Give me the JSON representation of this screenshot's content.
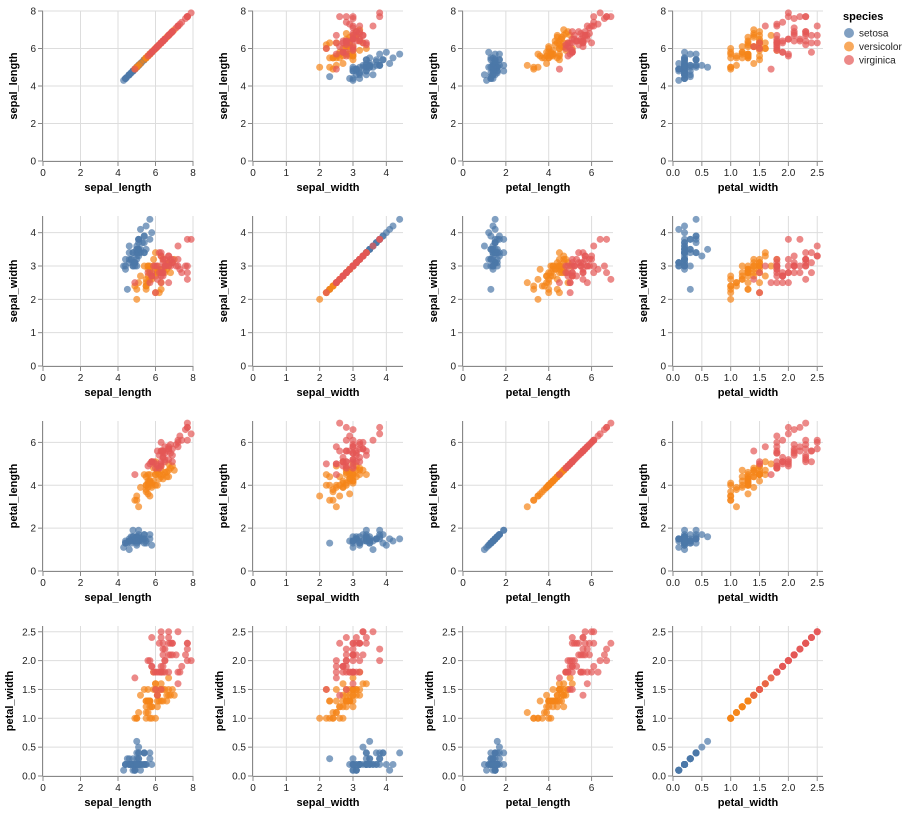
{
  "chart_data": {
    "type": "scatter",
    "layout": "scatter-matrix",
    "fields": [
      "sepal_length",
      "sepal_width",
      "petal_length",
      "petal_width"
    ],
    "axes": {
      "sepal_length": {
        "title": "sepal_length",
        "domain": [
          0,
          8
        ],
        "ticks": [
          "0",
          "2",
          "4",
          "6",
          "8"
        ]
      },
      "sepal_width": {
        "title": "sepal_width",
        "domain": [
          0,
          4.5
        ],
        "ticks": [
          "0",
          "1",
          "2",
          "3",
          "4"
        ]
      },
      "petal_length": {
        "title": "petal_length",
        "domain": [
          0,
          7
        ],
        "ticks": [
          "0",
          "2",
          "4",
          "6"
        ]
      },
      "petal_width": {
        "title": "petal_width",
        "domain": [
          0,
          2.6
        ],
        "ticks": [
          "0.0",
          "0.5",
          "1.0",
          "1.5",
          "2.0",
          "2.5"
        ]
      }
    },
    "grid": true,
    "legend": {
      "title": "species",
      "placement": "top-right"
    },
    "series": [
      {
        "name": "setosa",
        "color": "#4c78a8",
        "values": [
          [
            5.1,
            3.5,
            1.4,
            0.2
          ],
          [
            4.9,
            3.0,
            1.4,
            0.2
          ],
          [
            4.7,
            3.2,
            1.3,
            0.2
          ],
          [
            4.6,
            3.1,
            1.5,
            0.2
          ],
          [
            5.0,
            3.6,
            1.4,
            0.2
          ],
          [
            5.4,
            3.9,
            1.7,
            0.4
          ],
          [
            4.6,
            3.4,
            1.4,
            0.3
          ],
          [
            5.0,
            3.4,
            1.5,
            0.2
          ],
          [
            4.4,
            2.9,
            1.4,
            0.2
          ],
          [
            4.9,
            3.1,
            1.5,
            0.1
          ],
          [
            5.4,
            3.7,
            1.5,
            0.2
          ],
          [
            4.8,
            3.4,
            1.6,
            0.2
          ],
          [
            4.8,
            3.0,
            1.4,
            0.1
          ],
          [
            4.3,
            3.0,
            1.1,
            0.1
          ],
          [
            5.8,
            4.0,
            1.2,
            0.2
          ],
          [
            5.7,
            4.4,
            1.5,
            0.4
          ],
          [
            5.4,
            3.9,
            1.3,
            0.4
          ],
          [
            5.1,
            3.5,
            1.4,
            0.3
          ],
          [
            5.7,
            3.8,
            1.7,
            0.3
          ],
          [
            5.1,
            3.8,
            1.5,
            0.3
          ],
          [
            5.4,
            3.4,
            1.7,
            0.2
          ],
          [
            5.1,
            3.7,
            1.5,
            0.4
          ],
          [
            4.6,
            3.6,
            1.0,
            0.2
          ],
          [
            5.1,
            3.3,
            1.7,
            0.5
          ],
          [
            4.8,
            3.4,
            1.9,
            0.2
          ],
          [
            5.0,
            3.0,
            1.6,
            0.2
          ],
          [
            5.0,
            3.4,
            1.6,
            0.4
          ],
          [
            5.2,
            3.5,
            1.5,
            0.2
          ],
          [
            5.2,
            3.4,
            1.4,
            0.2
          ],
          [
            4.7,
            3.2,
            1.6,
            0.2
          ],
          [
            4.8,
            3.1,
            1.6,
            0.2
          ],
          [
            5.4,
            3.4,
            1.5,
            0.4
          ],
          [
            5.2,
            4.1,
            1.5,
            0.1
          ],
          [
            5.5,
            4.2,
            1.4,
            0.2
          ],
          [
            4.9,
            3.1,
            1.5,
            0.1
          ],
          [
            5.0,
            3.2,
            1.2,
            0.2
          ],
          [
            5.5,
            3.5,
            1.3,
            0.2
          ],
          [
            4.9,
            3.1,
            1.5,
            0.1
          ],
          [
            4.4,
            3.0,
            1.3,
            0.2
          ],
          [
            5.1,
            3.4,
            1.5,
            0.2
          ],
          [
            5.0,
            3.5,
            1.3,
            0.3
          ],
          [
            4.5,
            2.3,
            1.3,
            0.3
          ],
          [
            4.4,
            3.2,
            1.3,
            0.2
          ],
          [
            5.0,
            3.5,
            1.6,
            0.6
          ],
          [
            5.1,
            3.8,
            1.9,
            0.4
          ],
          [
            4.8,
            3.0,
            1.4,
            0.3
          ],
          [
            5.1,
            3.8,
            1.6,
            0.2
          ],
          [
            4.6,
            3.2,
            1.4,
            0.2
          ],
          [
            5.3,
            3.7,
            1.5,
            0.2
          ],
          [
            5.0,
            3.3,
            1.4,
            0.2
          ]
        ]
      },
      {
        "name": "versicolor",
        "color": "#f58518",
        "values": [
          [
            7.0,
            3.2,
            4.7,
            1.4
          ],
          [
            6.4,
            3.2,
            4.5,
            1.5
          ],
          [
            6.9,
            3.1,
            4.9,
            1.5
          ],
          [
            5.5,
            2.3,
            4.0,
            1.3
          ],
          [
            6.5,
            2.8,
            4.6,
            1.5
          ],
          [
            5.7,
            2.8,
            4.5,
            1.3
          ],
          [
            6.3,
            3.3,
            4.7,
            1.6
          ],
          [
            4.9,
            2.4,
            3.3,
            1.0
          ],
          [
            6.6,
            2.9,
            4.6,
            1.3
          ],
          [
            5.2,
            2.7,
            3.9,
            1.4
          ],
          [
            5.0,
            2.0,
            3.5,
            1.0
          ],
          [
            5.9,
            3.0,
            4.2,
            1.5
          ],
          [
            6.0,
            2.2,
            4.0,
            1.0
          ],
          [
            6.1,
            2.9,
            4.7,
            1.4
          ],
          [
            5.6,
            2.9,
            3.6,
            1.3
          ],
          [
            6.7,
            3.1,
            4.4,
            1.4
          ],
          [
            5.6,
            3.0,
            4.5,
            1.5
          ],
          [
            5.8,
            2.7,
            4.1,
            1.0
          ],
          [
            6.2,
            2.2,
            4.5,
            1.5
          ],
          [
            5.6,
            2.5,
            3.9,
            1.1
          ],
          [
            5.9,
            3.2,
            4.8,
            1.8
          ],
          [
            6.1,
            2.8,
            4.0,
            1.3
          ],
          [
            6.3,
            2.5,
            4.9,
            1.5
          ],
          [
            6.1,
            2.8,
            4.7,
            1.2
          ],
          [
            6.4,
            2.9,
            4.3,
            1.3
          ],
          [
            6.6,
            3.0,
            4.4,
            1.4
          ],
          [
            6.8,
            2.8,
            4.8,
            1.4
          ],
          [
            6.7,
            3.0,
            5.0,
            1.7
          ],
          [
            6.0,
            2.9,
            4.5,
            1.5
          ],
          [
            5.7,
            2.6,
            3.5,
            1.0
          ],
          [
            5.5,
            2.4,
            3.8,
            1.1
          ],
          [
            5.5,
            2.4,
            3.7,
            1.0
          ],
          [
            5.8,
            2.7,
            3.9,
            1.2
          ],
          [
            6.0,
            2.7,
            5.1,
            1.6
          ],
          [
            5.4,
            3.0,
            4.5,
            1.5
          ],
          [
            6.0,
            3.4,
            4.5,
            1.6
          ],
          [
            6.7,
            3.1,
            4.7,
            1.5
          ],
          [
            6.3,
            2.3,
            4.4,
            1.3
          ],
          [
            5.6,
            3.0,
            4.1,
            1.3
          ],
          [
            5.5,
            2.5,
            4.0,
            1.3
          ],
          [
            5.5,
            2.6,
            4.4,
            1.2
          ],
          [
            6.1,
            3.0,
            4.6,
            1.4
          ],
          [
            5.8,
            2.6,
            4.0,
            1.2
          ],
          [
            5.0,
            2.3,
            3.3,
            1.0
          ],
          [
            5.6,
            2.7,
            4.2,
            1.3
          ],
          [
            5.7,
            3.0,
            4.2,
            1.2
          ],
          [
            5.7,
            2.9,
            4.2,
            1.3
          ],
          [
            6.2,
            2.9,
            4.3,
            1.3
          ],
          [
            5.1,
            2.5,
            3.0,
            1.1
          ],
          [
            5.7,
            2.8,
            4.1,
            1.3
          ]
        ]
      },
      {
        "name": "virginica",
        "color": "#e45756",
        "values": [
          [
            6.3,
            3.3,
            6.0,
            2.5
          ],
          [
            5.8,
            2.7,
            5.1,
            1.9
          ],
          [
            7.1,
            3.0,
            5.9,
            2.1
          ],
          [
            6.3,
            2.9,
            5.6,
            1.8
          ],
          [
            6.5,
            3.0,
            5.8,
            2.2
          ],
          [
            7.6,
            3.0,
            6.6,
            2.1
          ],
          [
            4.9,
            2.5,
            4.5,
            1.7
          ],
          [
            7.3,
            2.9,
            6.3,
            1.8
          ],
          [
            6.7,
            2.5,
            5.8,
            1.8
          ],
          [
            7.2,
            3.6,
            6.1,
            2.5
          ],
          [
            6.5,
            3.2,
            5.1,
            2.0
          ],
          [
            6.4,
            2.7,
            5.3,
            1.9
          ],
          [
            6.8,
            3.0,
            5.5,
            2.1
          ],
          [
            5.7,
            2.5,
            5.0,
            2.0
          ],
          [
            5.8,
            2.8,
            5.1,
            2.4
          ],
          [
            6.4,
            3.2,
            5.3,
            2.3
          ],
          [
            6.5,
            3.0,
            5.5,
            1.8
          ],
          [
            7.7,
            3.8,
            6.7,
            2.2
          ],
          [
            7.7,
            2.6,
            6.9,
            2.3
          ],
          [
            6.0,
            2.2,
            5.0,
            1.5
          ],
          [
            6.9,
            3.2,
            5.7,
            2.3
          ],
          [
            5.6,
            2.8,
            4.9,
            2.0
          ],
          [
            7.7,
            2.8,
            6.7,
            2.0
          ],
          [
            6.3,
            2.7,
            4.9,
            1.8
          ],
          [
            6.7,
            3.3,
            5.7,
            2.1
          ],
          [
            7.2,
            3.2,
            6.0,
            1.8
          ],
          [
            6.2,
            2.8,
            4.8,
            1.8
          ],
          [
            6.1,
            3.0,
            4.9,
            1.8
          ],
          [
            6.4,
            2.8,
            5.6,
            2.1
          ],
          [
            7.2,
            3.0,
            5.8,
            1.6
          ],
          [
            7.4,
            2.8,
            6.1,
            1.9
          ],
          [
            7.9,
            3.8,
            6.4,
            2.0
          ],
          [
            6.4,
            2.8,
            5.6,
            2.2
          ],
          [
            6.3,
            2.8,
            5.1,
            1.5
          ],
          [
            6.1,
            2.6,
            5.6,
            1.4
          ],
          [
            7.7,
            3.0,
            6.1,
            2.3
          ],
          [
            6.3,
            3.4,
            5.6,
            2.4
          ],
          [
            6.4,
            3.1,
            5.5,
            1.8
          ],
          [
            6.0,
            3.0,
            4.8,
            1.8
          ],
          [
            6.9,
            3.1,
            5.4,
            2.1
          ],
          [
            6.7,
            3.1,
            5.6,
            2.4
          ],
          [
            6.9,
            3.1,
            5.1,
            2.3
          ],
          [
            5.8,
            2.7,
            5.1,
            1.9
          ],
          [
            6.8,
            3.2,
            5.9,
            2.3
          ],
          [
            6.7,
            3.3,
            5.7,
            2.5
          ],
          [
            6.7,
            3.0,
            5.2,
            2.3
          ],
          [
            6.3,
            2.5,
            5.0,
            1.9
          ],
          [
            6.5,
            3.0,
            5.2,
            2.0
          ],
          [
            6.2,
            3.4,
            5.4,
            2.3
          ],
          [
            5.9,
            3.0,
            5.1,
            1.8
          ]
        ]
      }
    ]
  }
}
